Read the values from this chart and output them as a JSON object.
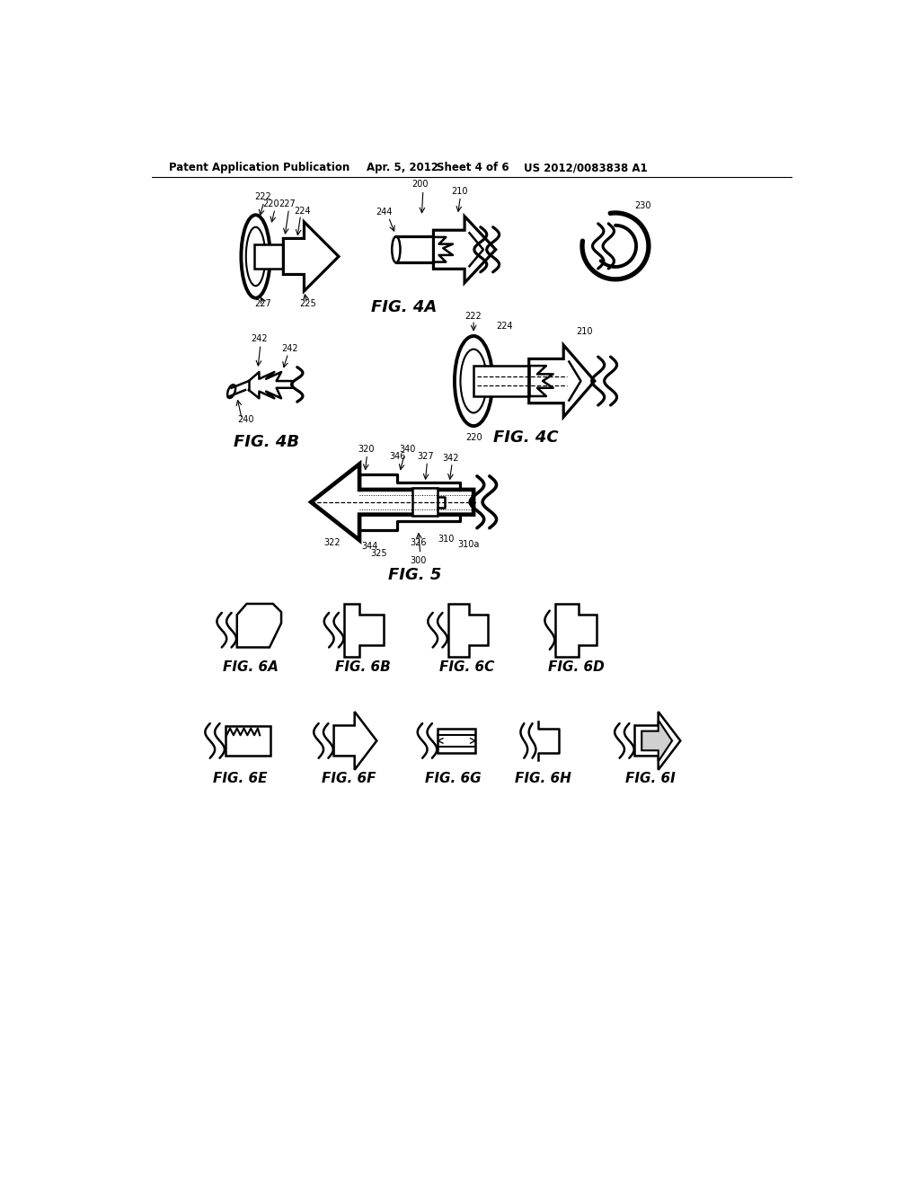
{
  "background_color": "#ffffff",
  "header_text": "Patent Application Publication",
  "header_date": "Apr. 5, 2012",
  "header_sheet": "Sheet 4 of 6",
  "header_patent": "US 2012/0083838 A1",
  "fig4a_label": "FIG. 4A",
  "fig4b_label": "FIG. 4B",
  "fig4c_label": "FIG. 4C",
  "fig5_label": "FIG. 5",
  "fig6a_label": "FIG. 6A",
  "fig6b_label": "FIG. 6B",
  "fig6c_label": "FIG. 6C",
  "fig6d_label": "FIG. 6D",
  "fig6e_label": "FIG. 6E",
  "fig6f_label": "FIG. 6F",
  "fig6g_label": "FIG. 6G",
  "fig6h_label": "FIG. 6H",
  "fig6i_label": "FIG. 6I",
  "line_color": "#000000",
  "line_width": 1.8
}
